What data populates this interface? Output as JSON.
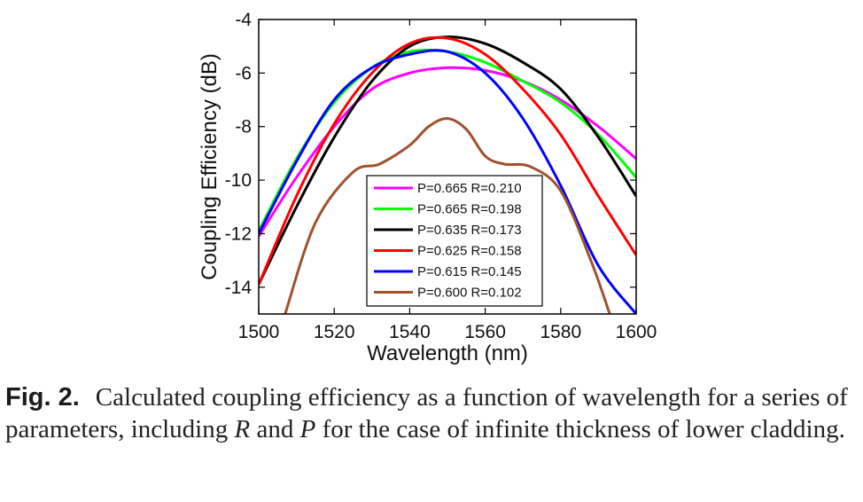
{
  "chart_data": {
    "type": "line",
    "xlabel": "Wavelength (nm)",
    "ylabel": "Coupling Efficiency (dB)",
    "xlim": [
      1500,
      1600
    ],
    "ylim": [
      -15,
      -4
    ],
    "xticks": [
      "1500",
      "1520",
      "1540",
      "1560",
      "1580",
      "1600"
    ],
    "yticks": [
      "-4",
      "-6",
      "-8",
      "-10",
      "-12",
      "-14"
    ],
    "legend_position": "bottom-center",
    "grid": false,
    "series": [
      {
        "name": "P=0.665 R=0.210",
        "color": "#ff00ff",
        "x": [
          1500,
          1510,
          1520,
          1530,
          1540,
          1550,
          1560,
          1570,
          1580,
          1590,
          1600
        ],
        "y": [
          -12.1,
          -9.9,
          -8.0,
          -6.6,
          -6.0,
          -5.8,
          -5.9,
          -6.3,
          -7.0,
          -8.0,
          -9.2
        ]
      },
      {
        "name": "P=0.665 R=0.198",
        "color": "#00ff00",
        "x": [
          1500,
          1510,
          1520,
          1530,
          1540,
          1550,
          1560,
          1570,
          1580,
          1590,
          1600
        ],
        "y": [
          -11.9,
          -9.2,
          -7.1,
          -5.8,
          -5.2,
          -5.2,
          -5.6,
          -6.3,
          -7.1,
          -8.3,
          -9.9
        ]
      },
      {
        "name": "P=0.635 R=0.173",
        "color": "#000000",
        "x": [
          1500,
          1510,
          1520,
          1530,
          1540,
          1550,
          1560,
          1570,
          1580,
          1590,
          1600
        ],
        "y": [
          -13.9,
          -11.0,
          -8.4,
          -6.3,
          -5.0,
          -4.65,
          -4.9,
          -5.6,
          -6.6,
          -8.4,
          -10.6
        ]
      },
      {
        "name": "P=0.625 R=0.158",
        "color": "#ff0000",
        "x": [
          1500,
          1510,
          1520,
          1530,
          1540,
          1550,
          1560,
          1570,
          1580,
          1590,
          1600
        ],
        "y": [
          -13.9,
          -10.6,
          -7.9,
          -6.0,
          -4.9,
          -4.7,
          -5.3,
          -6.6,
          -8.3,
          -10.6,
          -12.8
        ]
      },
      {
        "name": "P=0.615 R=0.145",
        "color": "#0000ff",
        "x": [
          1500,
          1510,
          1520,
          1530,
          1540,
          1550,
          1560,
          1570,
          1580,
          1590,
          1600
        ],
        "y": [
          -12.0,
          -9.3,
          -7.0,
          -5.8,
          -5.3,
          -5.2,
          -6.0,
          -7.7,
          -10.2,
          -13.2,
          -15.0
        ]
      },
      {
        "name": "P=0.600 R=0.102",
        "color": "#a0522d",
        "x": [
          1507,
          1515,
          1525,
          1532,
          1540,
          1545,
          1550,
          1555,
          1560,
          1565,
          1572,
          1580,
          1588,
          1593
        ],
        "y": [
          -15.0,
          -11.6,
          -9.7,
          -9.4,
          -8.7,
          -8.0,
          -7.7,
          -8.1,
          -9.1,
          -9.4,
          -9.5,
          -10.4,
          -13.0,
          -15.0
        ]
      }
    ]
  },
  "caption": {
    "label": "Fig. 2.",
    "part1": "Calculated coupling efficiency as a function of wavelength for a series of parameters, including ",
    "var_r": "R",
    "part2": " and ",
    "var_p": "P",
    "part3": " for the case of infinite thickness of lower cladding."
  }
}
